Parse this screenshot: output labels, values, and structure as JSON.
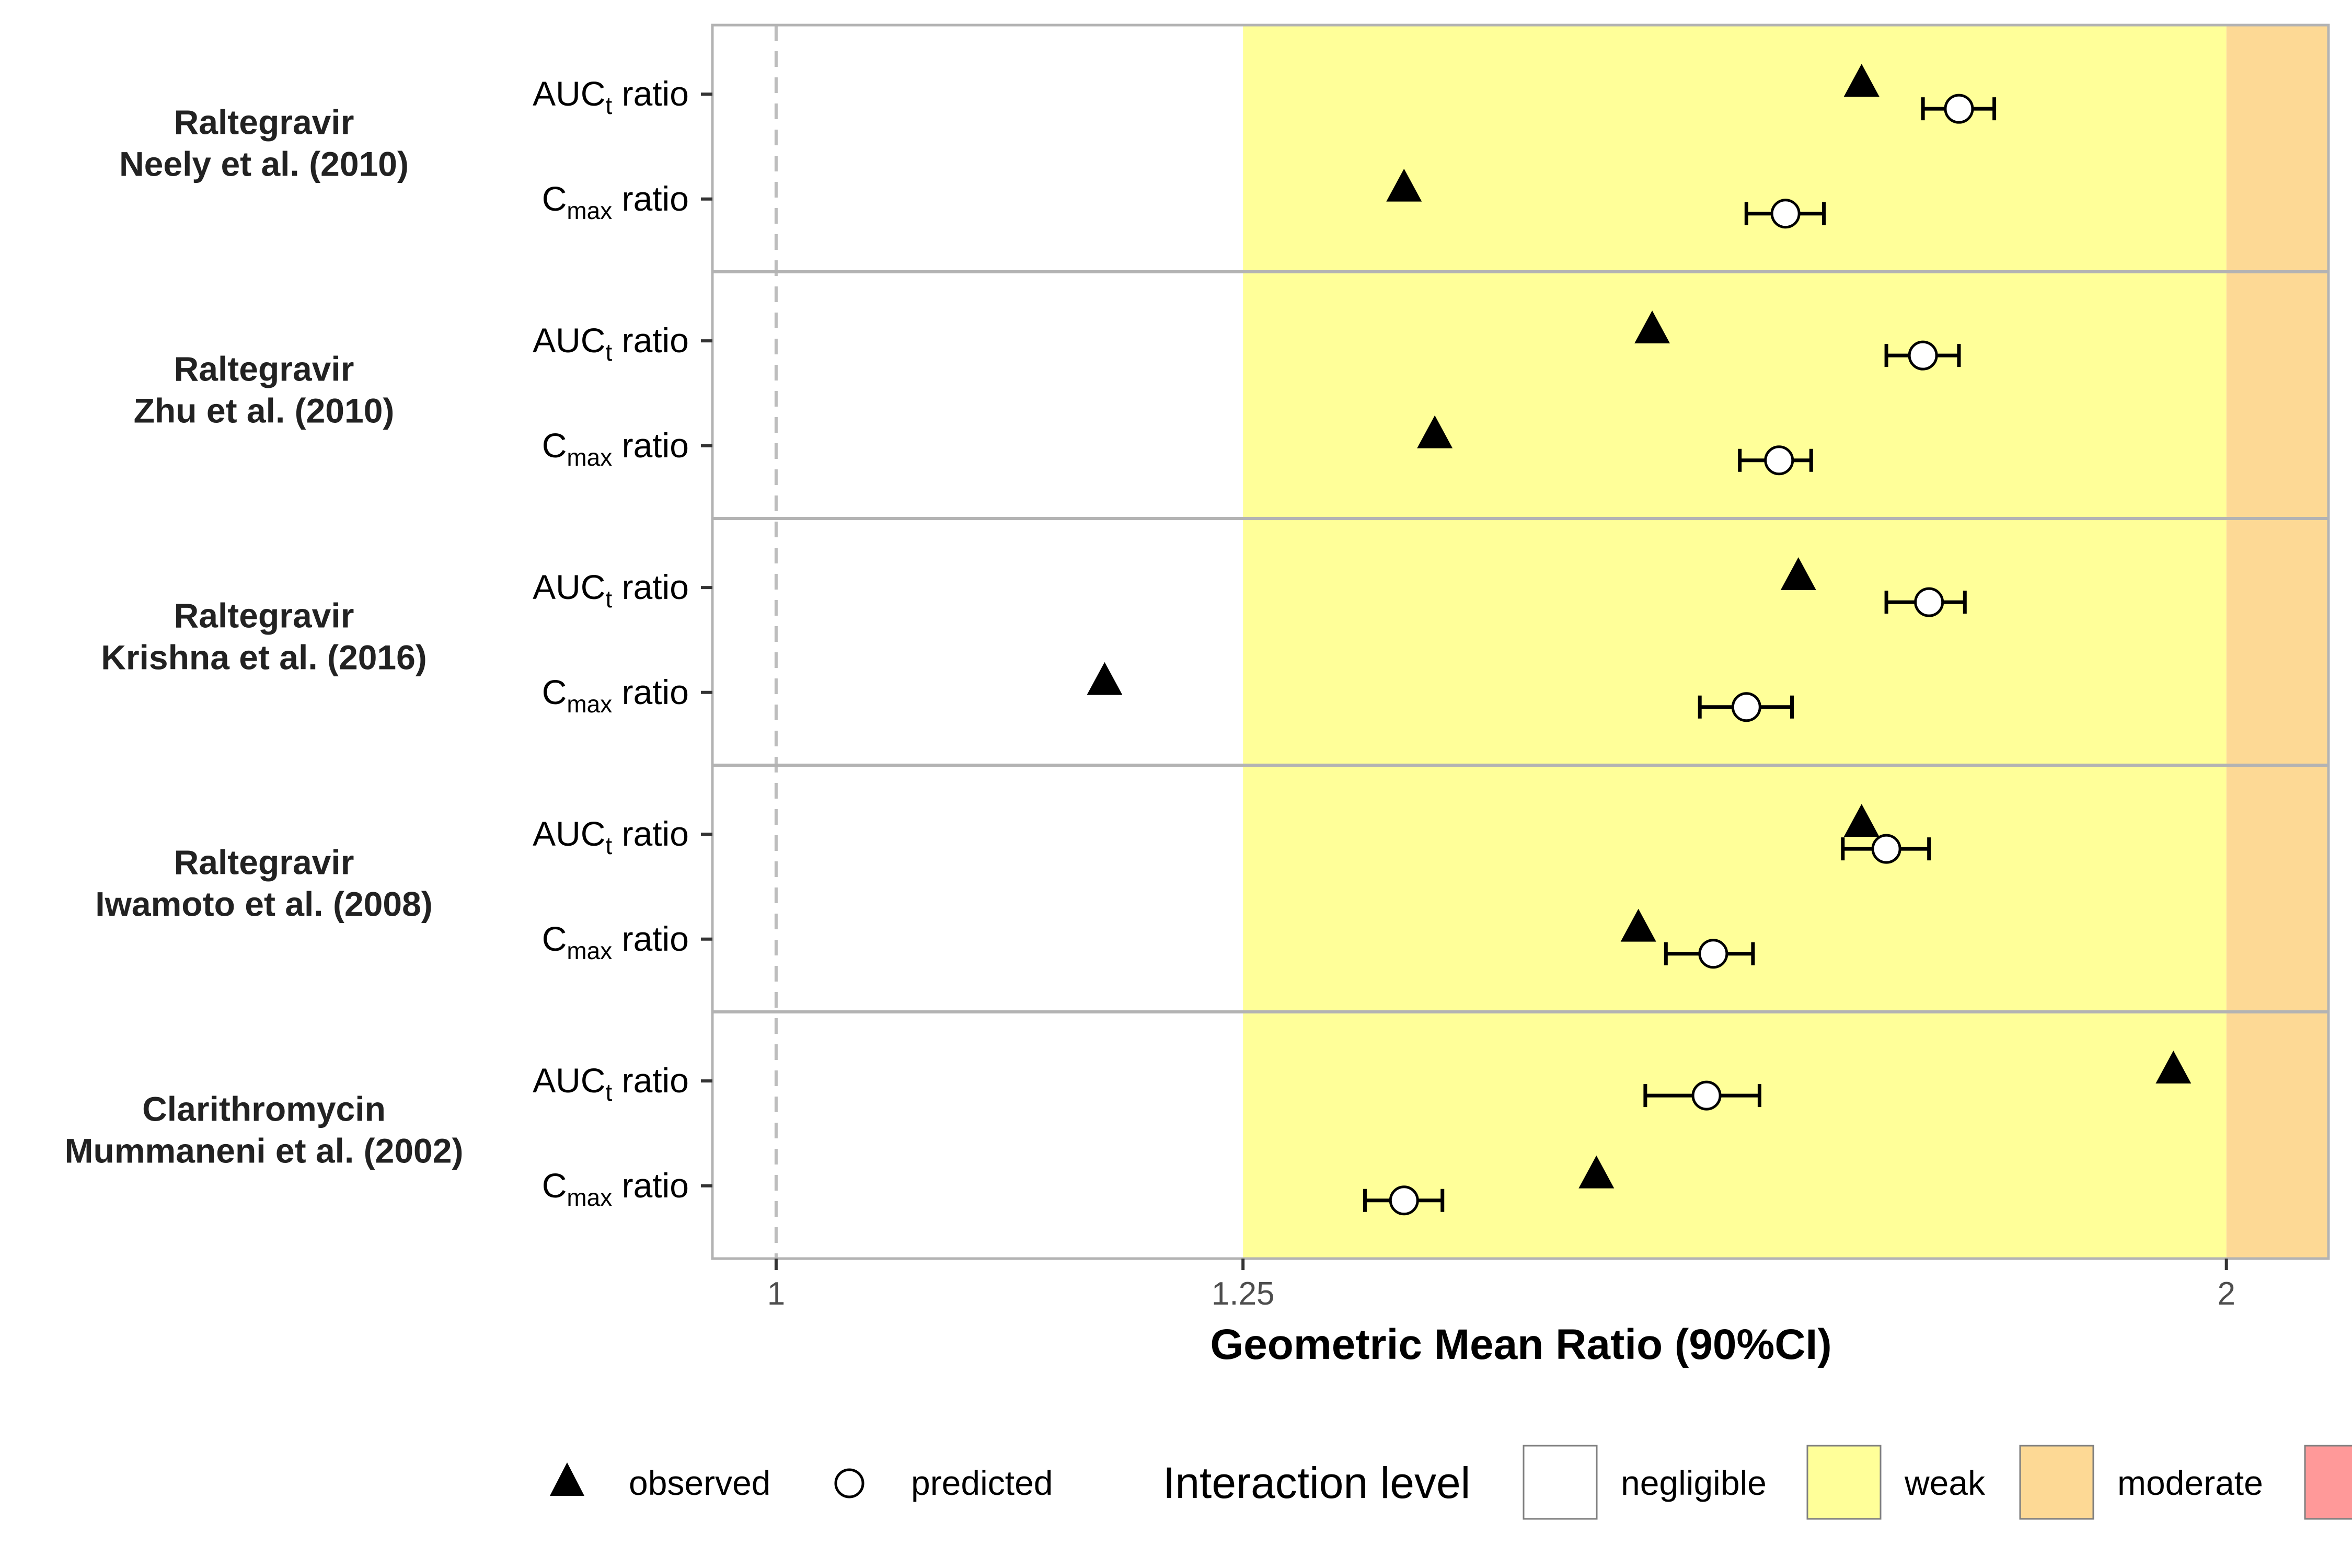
{
  "chart_data": {
    "type": "scatter",
    "xlabel": "Geometric Mean Ratio (90%CI)",
    "x_scale": "log",
    "xlim": [
      0.97,
      2.1
    ],
    "x_ticks": [
      {
        "value": 1,
        "label": "1"
      },
      {
        "value": 1.25,
        "label": "1.25"
      },
      {
        "value": 2,
        "label": "2"
      }
    ],
    "reference_line": 1,
    "interaction_bands": [
      {
        "level": "negligible",
        "from": 0.97,
        "to": 1.25,
        "color": "#ffffff"
      },
      {
        "level": "weak",
        "from": 1.25,
        "to": 2,
        "color": "#ffff99"
      },
      {
        "level": "moderate",
        "from": 2,
        "to": 2.1,
        "color": "#fdd995"
      }
    ],
    "row_labels": {
      "auc": [
        "AUC",
        "t",
        " ratio"
      ],
      "cmax": [
        "C",
        "max",
        " ratio"
      ]
    },
    "studies": [
      {
        "drug": "Raltegravir",
        "ref": "Neely et al. (2010)",
        "auc": {
          "observed": 1.68,
          "predicted": 1.76,
          "ci": [
            1.73,
            1.79
          ]
        },
        "cmax": {
          "observed": 1.35,
          "predicted": 1.62,
          "ci": [
            1.59,
            1.65
          ]
        }
      },
      {
        "drug": "Raltegravir",
        "ref": "Zhu et al. (2010)",
        "auc": {
          "observed": 1.52,
          "predicted": 1.73,
          "ci": [
            1.7,
            1.76
          ]
        },
        "cmax": {
          "observed": 1.37,
          "predicted": 1.615,
          "ci": [
            1.585,
            1.64
          ]
        }
      },
      {
        "drug": "Raltegravir",
        "ref": "Krishna et al. (2016)",
        "auc": {
          "observed": 1.63,
          "predicted": 1.735,
          "ci": [
            1.7,
            1.765
          ]
        },
        "cmax": {
          "observed": 1.17,
          "predicted": 1.59,
          "ci": [
            1.555,
            1.625
          ]
        }
      },
      {
        "drug": "Raltegravir",
        "ref": "Iwamoto et al. (2008)",
        "auc": {
          "observed": 1.68,
          "predicted": 1.7,
          "ci": [
            1.665,
            1.735
          ]
        },
        "cmax": {
          "observed": 1.51,
          "predicted": 1.565,
          "ci": [
            1.53,
            1.595
          ]
        }
      },
      {
        "drug": "Clarithromycin",
        "ref": "Mummaneni et al. (2002)",
        "auc": {
          "observed": 1.95,
          "predicted": 1.56,
          "ci": [
            1.515,
            1.6
          ]
        },
        "cmax": {
          "observed": 1.48,
          "predicted": 1.35,
          "ci": [
            1.325,
            1.375
          ]
        }
      }
    ],
    "legend": {
      "shape_items": [
        {
          "symbol": "triangle",
          "label": "observed"
        },
        {
          "symbol": "circle",
          "label": "predicted"
        }
      ],
      "fill_title": "Interaction level",
      "fill_items": [
        {
          "label": "negligible",
          "color": "#ffffff"
        },
        {
          "label": "weak",
          "color": "#ffff99"
        },
        {
          "label": "moderate",
          "color": "#fdd995"
        },
        {
          "label": "",
          "color": "#ff9999"
        }
      ]
    }
  }
}
